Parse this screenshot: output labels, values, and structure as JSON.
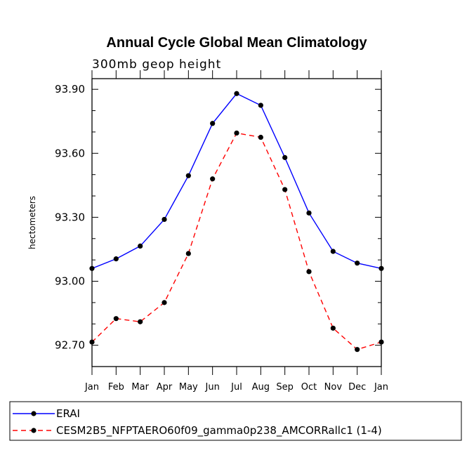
{
  "chart_data": {
    "type": "line",
    "title": "Annual Cycle Global Mean Climatology",
    "subtitle": "300mb geop height",
    "xlabel": "",
    "ylabel": "hectometers",
    "categories": [
      "Jan",
      "Feb",
      "Mar",
      "Apr",
      "May",
      "Jun",
      "Jul",
      "Aug",
      "Sep",
      "Oct",
      "Nov",
      "Dec",
      "Jan"
    ],
    "ylim": [
      92.6,
      93.95
    ],
    "yticks": [
      92.7,
      93.0,
      93.3,
      93.6,
      93.9
    ],
    "ytick_labels": [
      "92.70",
      "93.00",
      "93.30",
      "93.60",
      "93.90"
    ],
    "series": [
      {
        "name": "ERAI",
        "color": "#0000ff",
        "dash": "solid",
        "values": [
          93.06,
          93.105,
          93.165,
          93.29,
          93.495,
          93.74,
          93.88,
          93.825,
          93.58,
          93.32,
          93.14,
          93.085,
          93.06
        ]
      },
      {
        "name": "CESM2B5_NFPTAERO60f09_gamma0p238_AMCORRallc1 (1-4)",
        "color": "#ff0000",
        "dash": "dashed",
        "values": [
          92.715,
          92.825,
          92.81,
          92.9,
          93.13,
          93.48,
          93.695,
          93.675,
          93.43,
          93.045,
          92.78,
          92.68,
          92.715
        ]
      }
    ],
    "legend_position": "bottom"
  }
}
